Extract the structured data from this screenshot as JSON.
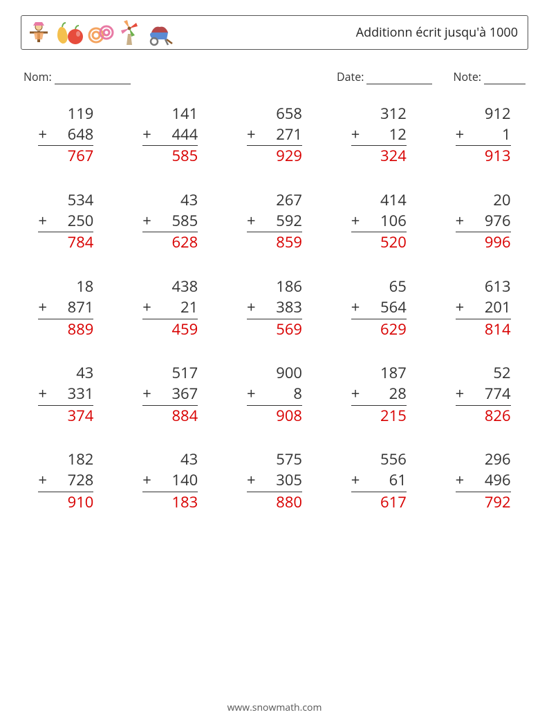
{
  "header": {
    "title": "Additionn écrit jusqu'à 1000"
  },
  "meta": {
    "name_label": "Nom:",
    "date_label": "Date:",
    "note_label": "Note:"
  },
  "style": {
    "answer_color": "#d80000",
    "text_color": "#333333",
    "border_color": "#555555",
    "problem_fontsize": 22,
    "title_fontsize": 18,
    "meta_fontsize": 16,
    "grid_cols": 5,
    "grid_rows": 5
  },
  "icons": {
    "colors": {
      "orange": "#f4a460",
      "red": "#e74c3c",
      "brown": "#8b5a2b",
      "green": "#6fb04e",
      "pink": "#e87aa4",
      "grey": "#777"
    }
  },
  "problems": [
    {
      "a": "119",
      "b": "648",
      "ans": "767"
    },
    {
      "a": "141",
      "b": "444",
      "ans": "585"
    },
    {
      "a": "658",
      "b": "271",
      "ans": "929"
    },
    {
      "a": "312",
      "b": "12",
      "ans": "324"
    },
    {
      "a": "912",
      "b": "1",
      "ans": "913"
    },
    {
      "a": "534",
      "b": "250",
      "ans": "784"
    },
    {
      "a": "43",
      "b": "585",
      "ans": "628"
    },
    {
      "a": "267",
      "b": "592",
      "ans": "859"
    },
    {
      "a": "414",
      "b": "106",
      "ans": "520"
    },
    {
      "a": "20",
      "b": "976",
      "ans": "996"
    },
    {
      "a": "18",
      "b": "871",
      "ans": "889"
    },
    {
      "a": "438",
      "b": "21",
      "ans": "459"
    },
    {
      "a": "186",
      "b": "383",
      "ans": "569"
    },
    {
      "a": "65",
      "b": "564",
      "ans": "629"
    },
    {
      "a": "613",
      "b": "201",
      "ans": "814"
    },
    {
      "a": "43",
      "b": "331",
      "ans": "374"
    },
    {
      "a": "517",
      "b": "367",
      "ans": "884"
    },
    {
      "a": "900",
      "b": "8",
      "ans": "908"
    },
    {
      "a": "187",
      "b": "28",
      "ans": "215"
    },
    {
      "a": "52",
      "b": "774",
      "ans": "826"
    },
    {
      "a": "182",
      "b": "728",
      "ans": "910"
    },
    {
      "a": "43",
      "b": "140",
      "ans": "183"
    },
    {
      "a": "575",
      "b": "305",
      "ans": "880"
    },
    {
      "a": "556",
      "b": "61",
      "ans": "617"
    },
    {
      "a": "296",
      "b": "496",
      "ans": "792"
    }
  ],
  "footer": {
    "url": "www.snowmath.com"
  }
}
